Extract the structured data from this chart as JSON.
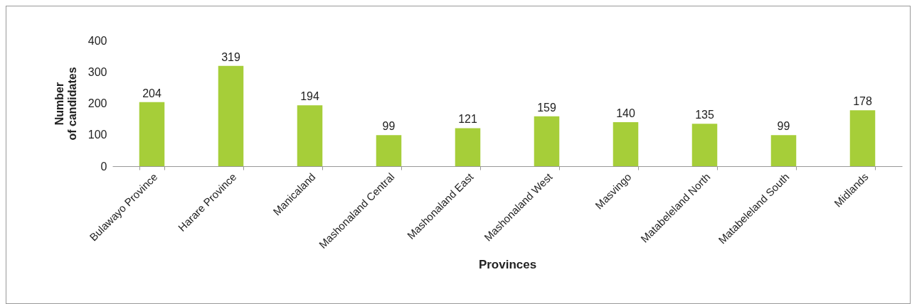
{
  "chart_data": {
    "type": "bar",
    "xlabel": "Provinces",
    "ylabel": "Number of candidates",
    "categories": [
      "Bulawayo Province",
      "Harare Province",
      "Manicaland",
      "Mashonaland Central",
      "Mashonaland East",
      "Mashonaland West",
      "Masvingo",
      "Matabeleland North",
      "Matabeleland South",
      "Midlands"
    ],
    "values": [
      204,
      319,
      194,
      99,
      121,
      159,
      140,
      135,
      99,
      178
    ],
    "color": "#a6ce39",
    "ylim": [
      0,
      400
    ],
    "yticks": [
      0,
      100,
      200,
      300,
      400
    ],
    "grid": false,
    "data_labels": true
  }
}
